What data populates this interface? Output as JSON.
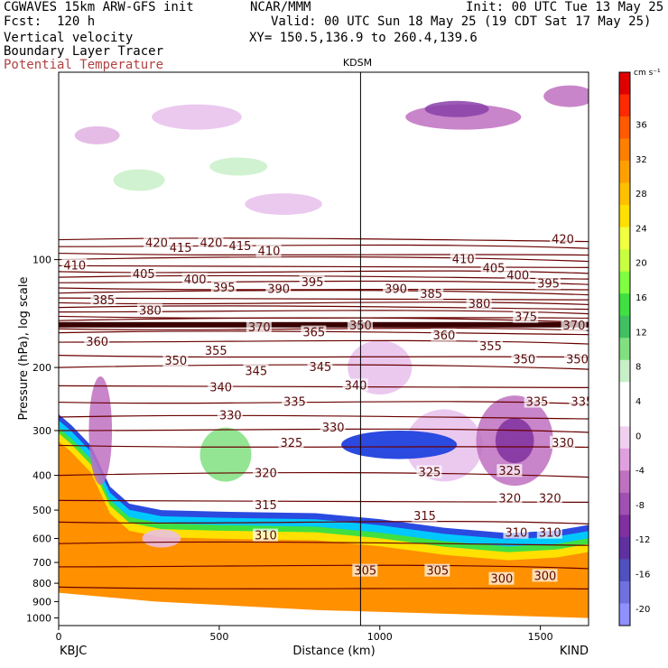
{
  "header": {
    "model": "CGWAVES 15km ARW-GFS init",
    "org": "NCAR/MMM",
    "init": "Init: 00 UTC Tue 13 May 25",
    "fcst": "Fcst:  120 h",
    "valid": "Valid: 00 UTC Sun 18 May 25 (19 CDT Sat 17 May 25)",
    "field1": "Vertical velocity",
    "xy": "XY= 150.5,136.9 to 260.4,139.6",
    "field2": "Boundary Layer Tracer",
    "field3": "Potential Temperature"
  },
  "chart_data": {
    "type": "heatmap",
    "title": "",
    "xlabel": "Distance (km)",
    "ylabel": "Pressure (hPa), log scale",
    "xlim": [
      0,
      1650
    ],
    "ylim": [
      1050,
      30
    ],
    "x_ticks": [
      "0",
      "500",
      "1000",
      "1500"
    ],
    "y_ticks": [
      "100",
      "200",
      "300",
      "400",
      "500",
      "600",
      "700",
      "800",
      "900",
      "1000"
    ],
    "endpoints": {
      "left": "KBJC",
      "right": "KIND"
    },
    "marker_label": "KDSM",
    "marker_x": 940,
    "colorbar": {
      "unit": "cm s⁻¹",
      "labels": [
        "36",
        "32",
        "28",
        "24",
        "20",
        "16",
        "12",
        "8",
        "4",
        "0",
        "-4",
        "-8",
        "-12",
        "-16",
        "-20"
      ],
      "colors": [
        "#e00000",
        "#ff2a00",
        "#ff5a00",
        "#ff8000",
        "#ffa000",
        "#ffc000",
        "#ffe000",
        "#f0ff40",
        "#c8ff40",
        "#80ff40",
        "#40e040",
        "#40c060",
        "#80e080",
        "#c8f0c8",
        "#ffffff",
        "#ffffff",
        "#f0d0f0",
        "#e0a0e0",
        "#c070c0",
        "#a050b0",
        "#8030a0",
        "#6030a0",
        "#5050c0",
        "#7070e0",
        "#9090ff"
      ]
    },
    "theta_labels": [
      {
        "v": "420",
        "x": 270,
        "p": 90
      },
      {
        "v": "415",
        "x": 345,
        "p": 93
      },
      {
        "v": "420",
        "x": 440,
        "p": 90
      },
      {
        "v": "415",
        "x": 530,
        "p": 92
      },
      {
        "v": "410",
        "x": 620,
        "p": 95
      },
      {
        "v": "420",
        "x": 1535,
        "p": 88
      },
      {
        "v": "410",
        "x": 15,
        "p": 104
      },
      {
        "v": "405",
        "x": 230,
        "p": 110
      },
      {
        "v": "400",
        "x": 390,
        "p": 114
      },
      {
        "v": "395",
        "x": 480,
        "p": 120
      },
      {
        "v": "390",
        "x": 650,
        "p": 121
      },
      {
        "v": "395",
        "x": 755,
        "p": 116
      },
      {
        "v": "410",
        "x": 1225,
        "p": 100
      },
      {
        "v": "405",
        "x": 1320,
        "p": 106
      },
      {
        "v": "400",
        "x": 1395,
        "p": 111
      },
      {
        "v": "395",
        "x": 1490,
        "p": 117
      },
      {
        "v": "385",
        "x": 105,
        "p": 130
      },
      {
        "v": "380",
        "x": 250,
        "p": 139
      },
      {
        "v": "390",
        "x": 1015,
        "p": 121
      },
      {
        "v": "385",
        "x": 1125,
        "p": 125
      },
      {
        "v": "380",
        "x": 1275,
        "p": 133
      },
      {
        "v": "360",
        "x": 85,
        "p": 170
      },
      {
        "v": "370",
        "x": 590,
        "p": 155
      },
      {
        "v": "365",
        "x": 760,
        "p": 160
      },
      {
        "v": "360",
        "x": 1165,
        "p": 163
      },
      {
        "v": "355",
        "x": 1310,
        "p": 175
      },
      {
        "v": "375",
        "x": 1420,
        "p": 145
      },
      {
        "v": "370",
        "x": 1570,
        "p": 153
      },
      {
        "v": "350",
        "x": 330,
        "p": 192
      },
      {
        "v": "355",
        "x": 455,
        "p": 180
      },
      {
        "v": "345",
        "x": 580,
        "p": 205
      },
      {
        "v": "345",
        "x": 780,
        "p": 200
      },
      {
        "v": "350",
        "x": 1415,
        "p": 190
      },
      {
        "v": "350",
        "x": 1580,
        "p": 190
      },
      {
        "v": "340",
        "x": 470,
        "p": 228
      },
      {
        "v": "340",
        "x": 890,
        "p": 225
      },
      {
        "v": "335",
        "x": 700,
        "p": 250
      },
      {
        "v": "335",
        "x": 1455,
        "p": 250
      },
      {
        "v": "335",
        "x": 1595,
        "p": 250
      },
      {
        "v": "330",
        "x": 500,
        "p": 273
      },
      {
        "v": "330",
        "x": 820,
        "p": 295
      },
      {
        "v": "325",
        "x": 690,
        "p": 325
      },
      {
        "v": "330",
        "x": 1535,
        "p": 325
      },
      {
        "v": "320",
        "x": 610,
        "p": 395
      },
      {
        "v": "325",
        "x": 1120,
        "p": 393
      },
      {
        "v": "325",
        "x": 1370,
        "p": 390
      },
      {
        "v": "320",
        "x": 1370,
        "p": 465
      },
      {
        "v": "320",
        "x": 1495,
        "p": 465
      },
      {
        "v": "315",
        "x": 610,
        "p": 485
      },
      {
        "v": "315",
        "x": 1105,
        "p": 520
      },
      {
        "v": "310",
        "x": 610,
        "p": 590
      },
      {
        "v": "310",
        "x": 1390,
        "p": 580
      },
      {
        "v": "310",
        "x": 1495,
        "p": 580
      },
      {
        "v": "305",
        "x": 920,
        "p": 740
      },
      {
        "v": "305",
        "x": 1145,
        "p": 740
      },
      {
        "v": "300",
        "x": 1345,
        "p": 780
      },
      {
        "v": "300",
        "x": 1480,
        "p": 765
      },
      {
        "v": "350",
        "x": 905,
        "p": 153
      }
    ],
    "blue_blob": {
      "x": [
        880,
        1240
      ],
      "p": [
        300,
        360
      ]
    }
  }
}
